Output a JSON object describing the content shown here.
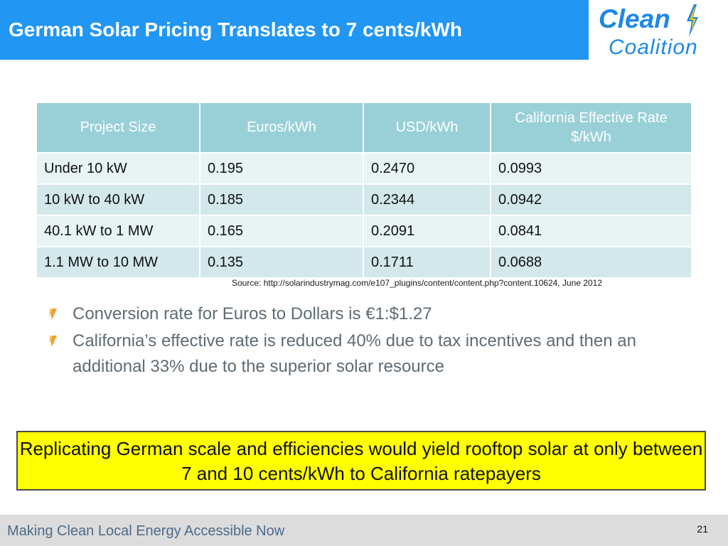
{
  "header": {
    "title": "German Solar Pricing Translates to 7 cents/kWh",
    "accent_color": "#2196f3"
  },
  "logo": {
    "line1": "Clean",
    "line2": "Coalition",
    "icon": "lightning-bolt-icon",
    "color": "#1e88e5"
  },
  "table": {
    "columns": [
      "Project Size",
      "Euros/kWh",
      "USD/kWh",
      "California Effective Rate $/kWh"
    ],
    "rows": [
      [
        "Under 10 kW",
        "0.195",
        "0.2470",
        "0.0993"
      ],
      [
        "10 kW to 40 kW",
        "0.185",
        "0.2344",
        "0.0942"
      ],
      [
        "40.1 kW to 1 MW",
        "0.165",
        "0.2091",
        "0.0841"
      ],
      [
        "1.1 MW to 10 MW",
        "0.135",
        "0.1711",
        "0.0688"
      ]
    ],
    "header_color": "#99d0d8"
  },
  "source": "Source: http://solarindustrymag.com/e107_plugins/content/content.php?content.10624, June 2012",
  "bullets": [
    "Conversion rate for Euros to Dollars is €1:$1.27",
    "California’s effective rate is reduced 40% due to tax incentives and then an additional 33% due to the superior solar resource"
  ],
  "callout": {
    "text": "Replicating German scale and efficiencies would yield rooftop solar at only between 7 and 10 cents/kWh to California ratepayers",
    "background": "#ffff00"
  },
  "footer": {
    "tagline": "Making Clean Local Energy Accessible Now",
    "page_number": "21"
  }
}
